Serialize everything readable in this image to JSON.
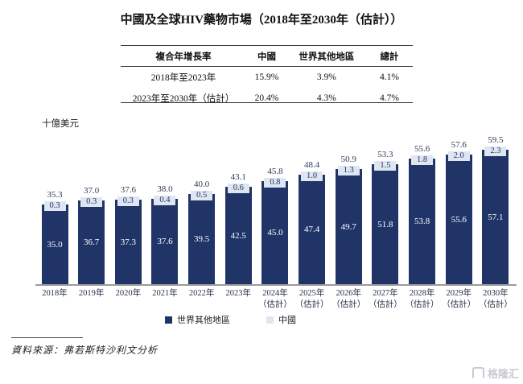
{
  "title": "中國及全球HIV藥物市場（2018年至2030年（估計））",
  "cagr_table": {
    "headers": [
      "複合年增長率",
      "中國",
      "世界其他地區",
      "總計"
    ],
    "rows": [
      {
        "period": "2018年至2023年",
        "values": [
          "15.9%",
          "3.9%",
          "4.1%"
        ]
      },
      {
        "period": "2023年至2030年（估計）",
        "values": [
          "20.4%",
          "4.3%",
          "4.7%"
        ]
      }
    ]
  },
  "y_axis_unit": "十億美元",
  "chart_data": {
    "type": "bar",
    "stacked": true,
    "title": "中國及全球HIV藥物市場（2018年至2030年（估計））",
    "ylabel": "十億美元",
    "ylim": [
      0,
      62
    ],
    "grid": false,
    "legend_position": "bottom",
    "categories": [
      "2018年",
      "2019年",
      "2020年",
      "2021年",
      "2022年",
      "2023年",
      "2024年",
      "2025年",
      "2026年",
      "2027年",
      "2028年",
      "2029年",
      "2030年"
    ],
    "estimate_suffix": "（估計）",
    "estimate_from_index": 6,
    "series": [
      {
        "name": "世界其他地區",
        "color": "#203468",
        "values": [
          35.0,
          36.7,
          37.3,
          37.6,
          39.5,
          42.5,
          45.0,
          47.4,
          49.7,
          51.8,
          53.8,
          55.6,
          57.1
        ]
      },
      {
        "name": "中國",
        "color": "#dfe6f1",
        "values": [
          0.3,
          0.3,
          0.3,
          0.4,
          0.5,
          0.6,
          0.8,
          1.0,
          1.3,
          1.5,
          1.8,
          2.0,
          2.3
        ]
      }
    ],
    "totals": [
      35.3,
      37.0,
      37.6,
      38.0,
      40.0,
      43.1,
      45.8,
      48.4,
      50.9,
      53.3,
      55.6,
      57.6,
      59.5
    ]
  },
  "legend": {
    "items": [
      {
        "label": "世界其他地區",
        "color": "#203468"
      },
      {
        "label": "中國",
        "color": "#dfe6f1"
      }
    ]
  },
  "source": "資料來源：弗若斯特沙利文分析",
  "watermark": "格隆汇",
  "colors": {
    "bar_navy": "#203468",
    "china_light": "#dfe6f1",
    "axis_gray": "#9b9b9b",
    "watermark_gray": "#c7cad0"
  }
}
